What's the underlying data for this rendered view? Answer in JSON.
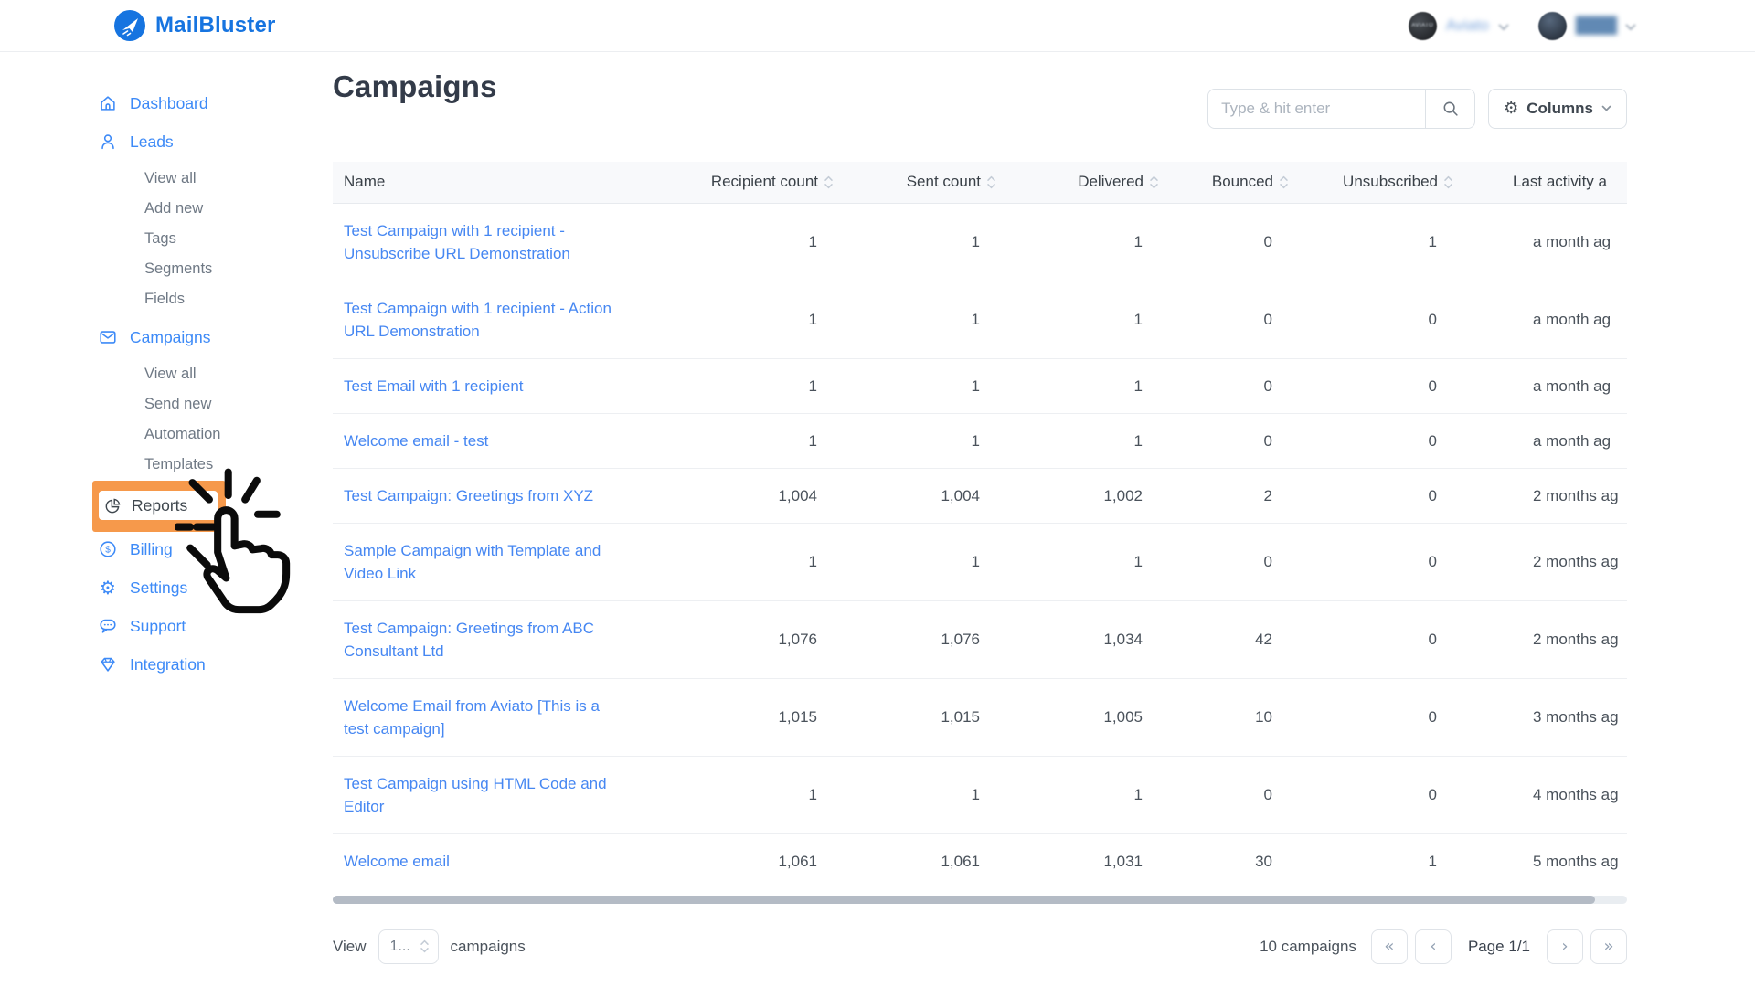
{
  "colors": {
    "brand_blue": "#1674E0",
    "sidebar_blue": "#3D8AF7",
    "link_blue": "#4687F2",
    "highlight_orange": "#F6994B"
  },
  "topbar": {
    "brand": "MailBluster",
    "users": [
      {
        "label": "Aviato",
        "avatar_text": "AVIATO"
      },
      {
        "label": "████"
      }
    ]
  },
  "sidebar": {
    "dashboard": "Dashboard",
    "leads": {
      "label": "Leads",
      "sub": [
        "View all",
        "Add new",
        "Tags",
        "Segments",
        "Fields"
      ]
    },
    "campaigns": {
      "label": "Campaigns",
      "sub": [
        "View all",
        "Send new",
        "Automation",
        "Templates"
      ]
    },
    "reports": "Reports",
    "billing": "Billing",
    "settings": "Settings",
    "support": "Support",
    "integration": "Integration"
  },
  "annotation": {
    "type": "click-highlight",
    "target": "Reports",
    "highlight_color": "#F6994B"
  },
  "page": {
    "title": "Campaigns"
  },
  "toolbar": {
    "search_placeholder": "Type & hit enter",
    "columns_label": "Columns"
  },
  "icons": {
    "gear": "⚙",
    "dollar": "$"
  },
  "table": {
    "columns": [
      {
        "label": "Name",
        "sortable": false
      },
      {
        "label": "Recipient count",
        "sortable": true
      },
      {
        "label": "Sent count",
        "sortable": true
      },
      {
        "label": "Delivered",
        "sortable": true
      },
      {
        "label": "Bounced",
        "sortable": true
      },
      {
        "label": "Unsubscribed",
        "sortable": true
      },
      {
        "label": "Last activity a",
        "sortable": false
      }
    ],
    "rows": [
      {
        "name": "Test Campaign with 1 recipient - Unsubscribe URL Demonstration",
        "recipient_count": "1",
        "sent_count": "1",
        "delivered": "1",
        "bounced": "0",
        "unsubscribed": "1",
        "last_activity": "a month ag"
      },
      {
        "name": "Test Campaign with 1 recipient - Action URL Demonstration",
        "recipient_count": "1",
        "sent_count": "1",
        "delivered": "1",
        "bounced": "0",
        "unsubscribed": "0",
        "last_activity": "a month ag"
      },
      {
        "name": "Test Email with 1 recipient",
        "recipient_count": "1",
        "sent_count": "1",
        "delivered": "1",
        "bounced": "0",
        "unsubscribed": "0",
        "last_activity": "a month ag"
      },
      {
        "name": "Welcome email - test",
        "recipient_count": "1",
        "sent_count": "1",
        "delivered": "1",
        "bounced": "0",
        "unsubscribed": "0",
        "last_activity": "a month ag"
      },
      {
        "name": "Test Campaign: Greetings from XYZ",
        "recipient_count": "1,004",
        "sent_count": "1,004",
        "delivered": "1,002",
        "bounced": "2",
        "unsubscribed": "0",
        "last_activity": "2 months ag"
      },
      {
        "name": "Sample Campaign with Template and Video Link",
        "recipient_count": "1",
        "sent_count": "1",
        "delivered": "1",
        "bounced": "0",
        "unsubscribed": "0",
        "last_activity": "2 months ag"
      },
      {
        "name": "Test Campaign: Greetings from ABC Consultant Ltd",
        "recipient_count": "1,076",
        "sent_count": "1,076",
        "delivered": "1,034",
        "bounced": "42",
        "unsubscribed": "0",
        "last_activity": "2 months ag"
      },
      {
        "name": "Welcome Email from Aviato [This is a test campaign]",
        "recipient_count": "1,015",
        "sent_count": "1,015",
        "delivered": "1,005",
        "bounced": "10",
        "unsubscribed": "0",
        "last_activity": "3 months ag"
      },
      {
        "name": "Test Campaign using HTML Code and Editor",
        "recipient_count": "1",
        "sent_count": "1",
        "delivered": "1",
        "bounced": "0",
        "unsubscribed": "0",
        "last_activity": "4 months ag"
      },
      {
        "name": "Welcome email",
        "recipient_count": "1,061",
        "sent_count": "1,061",
        "delivered": "1,031",
        "bounced": "30",
        "unsubscribed": "1",
        "last_activity": "5 months ag"
      }
    ]
  },
  "footer": {
    "view_label": "View",
    "per_page": "1...",
    "view_suffix": "campaigns",
    "total": "10 campaigns",
    "page": "Page 1/1",
    "pager": {
      "first": "«",
      "prev": "‹",
      "next": "›",
      "last": "»"
    }
  }
}
